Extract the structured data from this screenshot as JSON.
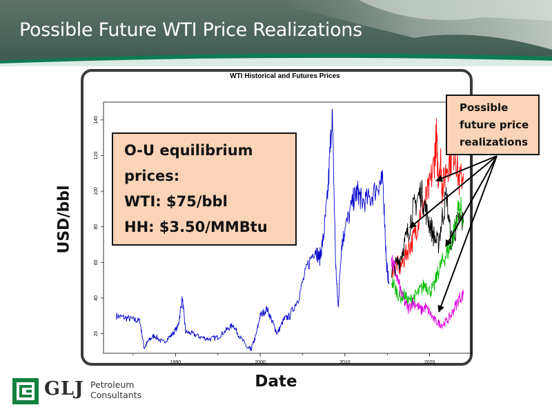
{
  "slide": {
    "title": "Possible Future WTI Price Realizations",
    "y_axis_label": "USD/bbl",
    "x_axis_label": "Date",
    "equilibrium_box": {
      "lines": [
        "O-U equilibrium",
        "prices:",
        "WTI: $75/bbl",
        "HH: $3.50/MMBtu"
      ]
    },
    "realizations_box": {
      "lines": [
        "Possible",
        "future price",
        "realizations"
      ]
    },
    "logo": {
      "name": "GLJ",
      "line1": "Petroleum",
      "line2": "Consultants"
    }
  },
  "colors": {
    "header_top": "#5d7268",
    "header_bottom": "#35574c",
    "header_stripe": "#0f7a52",
    "historical": "#0000cc",
    "red": "#ff0000",
    "black": "#000000",
    "green": "#00bb00",
    "magenta": "#dd00dd",
    "callout_fill": "#fbd3b7"
  },
  "chart_data": {
    "type": "line",
    "title": "WTI Historical and Futures Prices",
    "xlim": [
      1981.5,
      2025
    ],
    "ylim": [
      9,
      150
    ],
    "x_ticks": [
      1990,
      2000,
      2010,
      2020
    ],
    "y_ticks": [
      20,
      40,
      60,
      80,
      100,
      120,
      140
    ],
    "grid": false,
    "series": [
      {
        "key": "historical",
        "color": "#0000cc",
        "x": [
          1983.0,
          1984.0,
          1985.0,
          1985.8,
          1986.3,
          1986.8,
          1987.5,
          1988.5,
          1989.5,
          1990.3,
          1990.8,
          1991.2,
          1992.0,
          1993.0,
          1994.0,
          1995.0,
          1996.0,
          1996.8,
          1997.5,
          1998.5,
          1998.9,
          1999.5,
          2000.0,
          2000.8,
          2001.5,
          2002.0,
          2002.8,
          2003.5,
          2004.5,
          2005.5,
          2006.5,
          2007.0,
          2007.5,
          2008.0,
          2008.5,
          2008.9,
          2009.2,
          2009.6,
          2010.0,
          2011.0,
          2011.5,
          2012.0,
          2013.0,
          2014.0,
          2014.5,
          2014.9,
          2015.2
        ],
        "y": [
          30,
          29,
          28,
          27,
          12,
          16,
          19,
          15,
          19,
          24,
          40,
          21,
          20,
          18,
          17,
          18,
          22,
          25,
          19,
          12,
          11,
          19,
          30,
          34,
          26,
          20,
          28,
          30,
          40,
          57,
          68,
          62,
          75,
          100,
          145,
          60,
          35,
          70,
          78,
          95,
          100,
          94,
          96,
          104,
          105,
          60,
          48
        ]
      },
      {
        "key": "red",
        "color": "#ff0000",
        "x": [
          2015.5,
          2016.0,
          2016.5,
          2017.0,
          2017.5,
          2018.0,
          2018.5,
          2019.0,
          2019.5,
          2020.0,
          2020.5,
          2020.8,
          2021.0,
          2021.3,
          2021.5,
          2022.0,
          2022.5,
          2023.0,
          2023.5,
          2024.0
        ],
        "y": [
          55,
          60,
          57,
          62,
          68,
          72,
          80,
          90,
          95,
          102,
          115,
          131,
          110,
          118,
          100,
          114,
          118,
          123,
          105,
          110
        ]
      },
      {
        "key": "black",
        "color": "#000000",
        "x": [
          2015.5,
          2016.0,
          2016.5,
          2017.0,
          2017.5,
          2018.0,
          2018.5,
          2019.0,
          2019.5,
          2020.0,
          2020.5,
          2021.0,
          2021.5,
          2022.0,
          2022.5,
          2023.0,
          2023.5,
          2024.0
        ],
        "y": [
          55,
          58,
          62,
          70,
          78,
          88,
          95,
          100,
          90,
          82,
          75,
          70,
          85,
          98,
          72,
          78,
          85,
          82
        ]
      },
      {
        "key": "green",
        "color": "#00bb00",
        "x": [
          2015.5,
          2016.0,
          2016.5,
          2017.0,
          2017.5,
          2018.0,
          2018.5,
          2019.0,
          2019.5,
          2020.0,
          2020.5,
          2021.0,
          2021.5,
          2022.0,
          2022.5,
          2023.0,
          2023.5,
          2024.0
        ],
        "y": [
          50,
          45,
          40,
          42,
          38,
          40,
          42,
          45,
          48,
          44,
          46,
          55,
          60,
          65,
          70,
          80,
          92,
          85
        ]
      },
      {
        "key": "magenta",
        "color": "#dd00dd",
        "x": [
          2015.5,
          2016.0,
          2016.5,
          2017.0,
          2017.5,
          2018.0,
          2018.5,
          2019.0,
          2019.5,
          2020.0,
          2020.5,
          2021.0,
          2021.5,
          2022.0,
          2022.5,
          2023.0,
          2023.5,
          2024.0
        ],
        "y": [
          60,
          55,
          45,
          38,
          34,
          38,
          36,
          33,
          35,
          32,
          28,
          26,
          25,
          27,
          30,
          35,
          40,
          42
        ]
      }
    ]
  }
}
